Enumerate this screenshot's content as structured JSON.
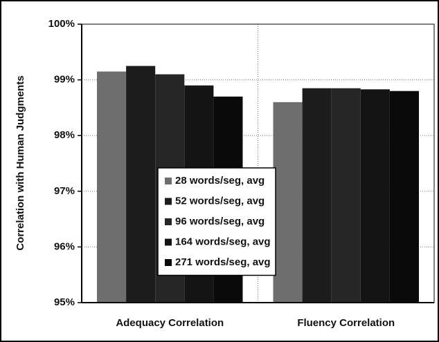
{
  "chart_data": {
    "type": "bar",
    "ylabel": "Correlation with Human Judgments",
    "categories": [
      "Adequacy Correlation",
      "Fluency Correlation"
    ],
    "series": [
      {
        "name": "28 words/seg, avg",
        "color": "#6e6e6e",
        "values": [
          99.15,
          98.6
        ]
      },
      {
        "name": "52 words/seg, avg",
        "color": "#1c1c1c",
        "values": [
          99.25,
          98.85
        ]
      },
      {
        "name": "96 words/seg, avg",
        "color": "#262626",
        "values": [
          99.1,
          98.85
        ]
      },
      {
        "name": "164 words/seg, avg",
        "color": "#141414",
        "values": [
          98.9,
          98.83
        ]
      },
      {
        "name": "271 words/seg, avg",
        "color": "#0a0a0a",
        "values": [
          98.7,
          98.8
        ]
      }
    ],
    "ylim": [
      95,
      100
    ],
    "yticks": [
      {
        "value": 95,
        "label": "95%"
      },
      {
        "value": 96,
        "label": "96%"
      },
      {
        "value": 97,
        "label": "97%"
      },
      {
        "value": 98,
        "label": "98%"
      },
      {
        "value": 99,
        "label": "99%"
      },
      {
        "value": 100,
        "label": "100%"
      }
    ],
    "grid": true,
    "legend": "center"
  }
}
